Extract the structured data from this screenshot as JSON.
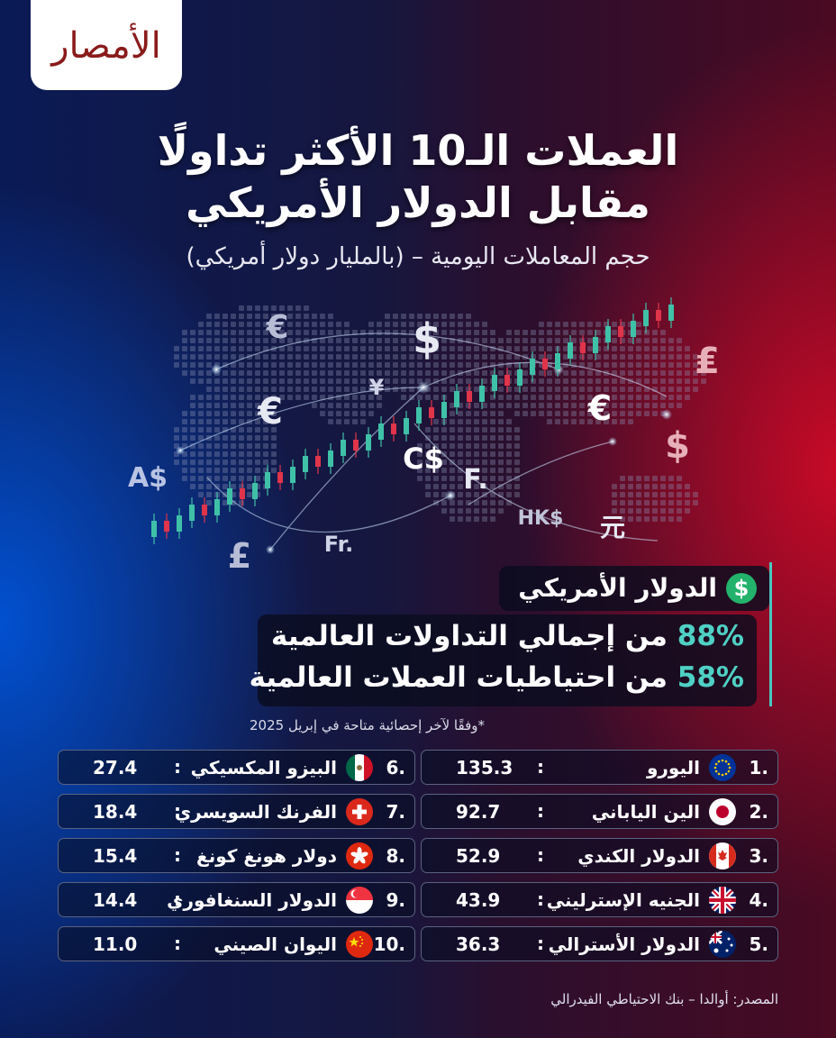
{
  "logo_text": "الأمصار",
  "title_line1": "العملات الـ10 الأكثر تداولًا",
  "title_line2": "مقابل الدولار الأمريكي",
  "subtitle": "حجم المعاملات اليومية – (بالمليار دولار أمريكي)",
  "map_symbols": [
    "€",
    "$",
    "¥",
    "€",
    "€",
    "$",
    "₤",
    "A$",
    "C$",
    "F.",
    "Fr.",
    "£",
    "HK$",
    "元"
  ],
  "usd_panel": {
    "icon": "$",
    "label": "الدولار الأمريكي",
    "stat1_pct": "88%",
    "stat1_text": "من إجمالي التداولات العالمية",
    "stat2_pct": "58%",
    "stat2_text": "من احتياطيات العملات العالمية"
  },
  "note": "*وفقًا لآخر إحصائية متاحة في إبريل 2025",
  "source": "المصدر: أوالدا – بنك الاحتياطي الفيدرالي",
  "chart_data": {
    "type": "table",
    "title": "العملات الـ10 الأكثر تداولًا مقابل الدولار الأمريكي",
    "subtitle": "حجم المعاملات اليومية – (بالمليار دولار أمريكي)",
    "rows": [
      {
        "rank": "1.",
        "currency": "اليورو",
        "flag": "eu-flag-icon",
        "value": 135.3,
        "value_text": "135.3"
      },
      {
        "rank": "2.",
        "currency": "الين الياباني",
        "flag": "japan-flag-icon",
        "value": 92.7,
        "value_text": "92.7"
      },
      {
        "rank": "3.",
        "currency": "الدولار الكندي",
        "flag": "canada-flag-icon",
        "value": 52.9,
        "value_text": "52.9"
      },
      {
        "rank": "4.",
        "currency": "الجنيه الإسترليني",
        "flag": "uk-flag-icon",
        "value": 43.9,
        "value_text": "43.9"
      },
      {
        "rank": "5.",
        "currency": "الدولار الأسترالي",
        "flag": "australia-flag-icon",
        "value": 36.3,
        "value_text": "36.3"
      },
      {
        "rank": "6.",
        "currency": "البيزو المكسيكي",
        "flag": "mexico-flag-icon",
        "value": 27.4,
        "value_text": "27.4"
      },
      {
        "rank": "7.",
        "currency": "الفرنك السويسري",
        "flag": "switzerland-flag-icon",
        "value": 18.4,
        "value_text": "18.4"
      },
      {
        "rank": "8.",
        "currency": "دولار هونغ كونغ",
        "flag": "hongkong-flag-icon",
        "value": 15.4,
        "value_text": "15.4"
      },
      {
        "rank": "9.",
        "currency": "الدولار السنغافوري",
        "flag": "singapore-flag-icon",
        "value": 14.4,
        "value_text": "14.4"
      },
      {
        "rank": "10.",
        "currency": "اليوان الصيني",
        "flag": "china-flag-icon",
        "value": 11.0,
        "value_text": "11.0"
      }
    ]
  }
}
